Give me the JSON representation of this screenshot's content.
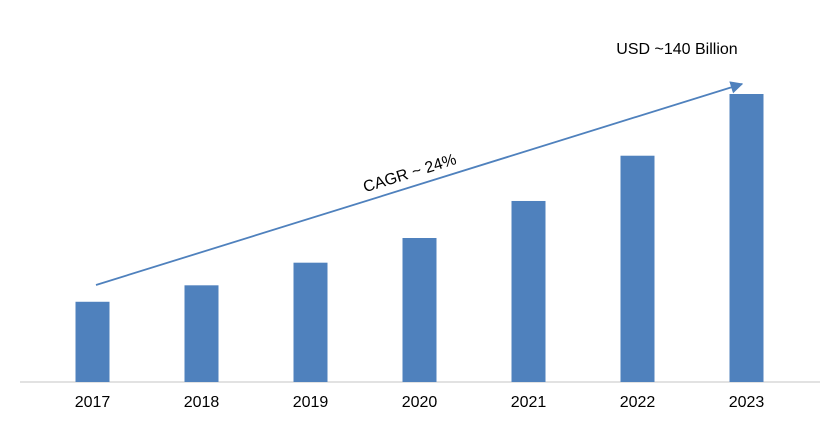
{
  "chart_data": {
    "type": "bar",
    "categories": [
      "2017",
      "2018",
      "2019",
      "2020",
      "2021",
      "2022",
      "2023"
    ],
    "values": [
      39,
      47,
      58,
      70,
      88,
      110,
      140
    ],
    "color": "#4f81bd",
    "annotations": [
      "USD ~140 Billion",
      "CAGR ~ 24%"
    ]
  }
}
